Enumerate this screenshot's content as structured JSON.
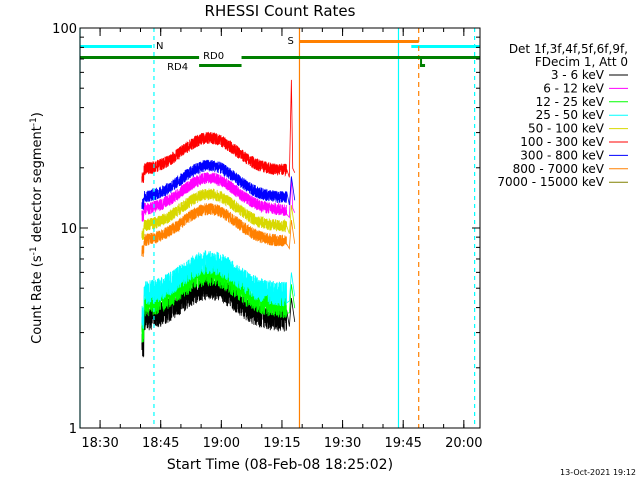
{
  "chart_data": {
    "type": "line",
    "title": "RHESSI Count Rates",
    "xlabel": "Start Time (08-Feb-08 18:25:02)",
    "ylabel": "Count Rate (s⁻¹ detector segment⁻¹)",
    "ylabel_parts": {
      "main": "Count Rate (s",
      "sup1": "-1",
      "mid": " detector segment",
      "sup2": "-1",
      "end": ")"
    },
    "x_scale": "time",
    "xlim": [
      "18:25:02",
      "20:04:00"
    ],
    "x_ticks": [
      "18:30",
      "18:45",
      "19:00",
      "19:15",
      "19:30",
      "19:45",
      "20:00"
    ],
    "y_scale": "log",
    "ylim": [
      1,
      100
    ],
    "y_ticks": [
      "1",
      "10",
      "100"
    ],
    "legend_header": [
      "Det 1f,3f,4f,5f,6f,9f,",
      "FDecim 1, Att 0"
    ],
    "legend_position": "right",
    "series": [
      {
        "name": "3 - 6 keV",
        "color": "#000000",
        "level": 3.5,
        "start": 2.6,
        "spike": 0
      },
      {
        "name": "6 - 12 keV",
        "color": "#ff00ff",
        "level": 12.3,
        "start": 11.5,
        "spike": 18
      },
      {
        "name": "12 - 25 keV",
        "color": "#00ff00",
        "level": 4.1,
        "start": 3.1,
        "spike": 0
      },
      {
        "name": "25 - 50 keV",
        "color": "#00ffff",
        "level": 4.7,
        "start": 3.6,
        "spike": 0
      },
      {
        "name": "50 - 100 keV",
        "color": "#d8d800",
        "level": 10.2,
        "start": 9.3,
        "spike": 0
      },
      {
        "name": "100 - 300 keV",
        "color": "#ff0000",
        "level": 19.5,
        "start": 18.0,
        "spike": 55
      },
      {
        "name": "300 - 800 keV",
        "color": "#0000ff",
        "level": 14.2,
        "start": 13.2,
        "spike": 0
      },
      {
        "name": "800 - 7000 keV",
        "color": "#ff8000",
        "level": 8.6,
        "start": 7.7,
        "spike": 0
      },
      {
        "name": "7000 - 15000 keV",
        "color": "#808000",
        "level": 0,
        "start": 0,
        "spike": 0
      }
    ],
    "data_time_range": [
      "18:40:20",
      "19:18:10"
    ],
    "hump": {
      "peak_time": "18:57:00",
      "peak_factor": 1.45
    },
    "annotations": {
      "night_label": "N",
      "night_bars": [
        [
          "18:25:02",
          "18:42:50"
        ],
        [
          "19:47:00",
          "20:04:00"
        ]
      ],
      "night_lines": [
        "18:25:02",
        "18:43:20",
        "19:43:50",
        "20:02:40"
      ],
      "saa_label": "S",
      "saa_bar": [
        "19:19:20",
        "19:48:50"
      ],
      "saa_lines": [
        {
          "time": "19:19:20",
          "style": "solid"
        },
        {
          "time": "19:48:50",
          "style": "dashed"
        }
      ],
      "decim_labels": [
        "RD0",
        "RD4"
      ],
      "decim_bars": [
        [
          "18:25:02",
          "18:54:30"
        ],
        [
          "18:54:30",
          "19:05:00"
        ],
        [
          "19:05:00",
          "20:04:00"
        ]
      ]
    },
    "grid": false
  },
  "footer_date": "13-Oct-2021 19:12",
  "colors": {
    "night": "#00ffff",
    "saa": "#ff8000",
    "decim": "#008000",
    "decim_label": "#008000"
  }
}
